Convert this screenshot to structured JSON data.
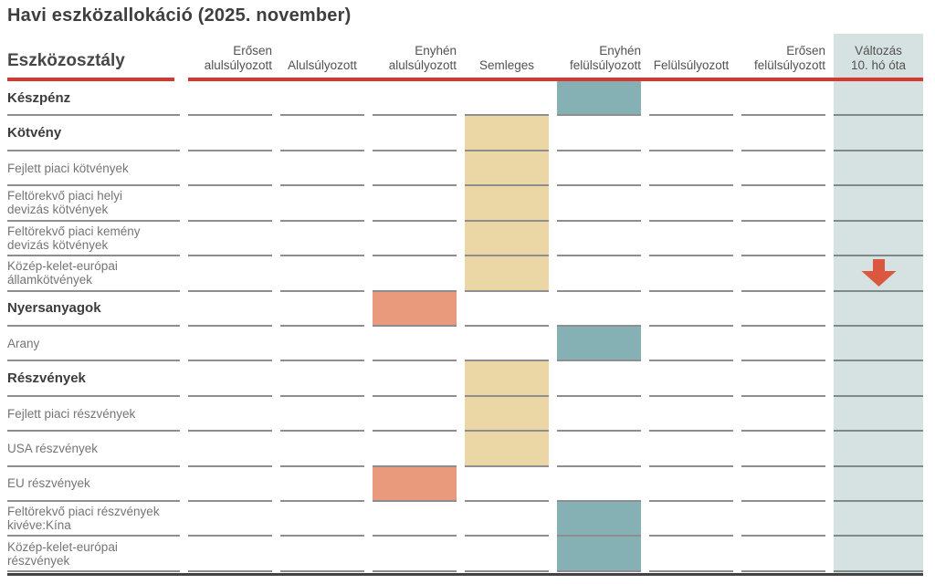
{
  "chart_data": {
    "type": "table",
    "title": "Havi eszközallokáció (2025. november)",
    "row_header": "Eszközosztály",
    "column_headers": [
      {
        "top": "Erősen",
        "bottom": "alulsúlyozott",
        "align": "right"
      },
      {
        "top": "",
        "bottom": "Alulsúlyozott",
        "align": "center"
      },
      {
        "top": "Enyhén",
        "bottom": "alulsúlyozott",
        "align": "right"
      },
      {
        "top": "",
        "bottom": "Semleges",
        "align": "center"
      },
      {
        "top": "Enyhén",
        "bottom": "felülsúlyozott",
        "align": "right"
      },
      {
        "top": "",
        "bottom": "Felülsúlyozott",
        "align": "center"
      },
      {
        "top": "Erősen",
        "bottom": "felülsúlyozott",
        "align": "right"
      },
      {
        "top": "Változás",
        "bottom": "10. hó óta",
        "align": "center"
      }
    ],
    "weight_scale": [
      "Erősen alulsúlyozott",
      "Alulsúlyozott",
      "Enyhén alulsúlyozott",
      "Semleges",
      "Enyhén felülsúlyozott",
      "Felülsúlyozott",
      "Erősen felülsúlyozott"
    ],
    "rows": [
      {
        "label": "Készpénz",
        "bold": true,
        "weight": 5,
        "weight_label": "Enyhén felülsúlyozott",
        "change": null
      },
      {
        "label": "Kötvény",
        "bold": true,
        "weight": 4,
        "weight_label": "Semleges",
        "change": null
      },
      {
        "label": "Fejlett piaci kötvények",
        "bold": false,
        "weight": 4,
        "weight_label": "Semleges",
        "change": null
      },
      {
        "label": "Feltörekvő piaci helyi\ndevizás kötvények",
        "bold": false,
        "weight": 4,
        "weight_label": "Semleges",
        "change": null
      },
      {
        "label": "Feltörekvő piaci kemény\ndevizás kötvények",
        "bold": false,
        "weight": 4,
        "weight_label": "Semleges",
        "change": null
      },
      {
        "label": "Közép-kelet-európai\nállamkötvények",
        "bold": false,
        "weight": 4,
        "weight_label": "Semleges",
        "change": "down"
      },
      {
        "label": "Nyersanyagok",
        "bold": true,
        "weight": 3,
        "weight_label": "Enyhén alulsúlyozott",
        "change": null
      },
      {
        "label": "Arany",
        "bold": false,
        "weight": 5,
        "weight_label": "Enyhén felülsúlyozott",
        "change": null
      },
      {
        "label": "Részvények",
        "bold": true,
        "weight": 4,
        "weight_label": "Semleges",
        "change": null
      },
      {
        "label": "Fejlett piaci részvények",
        "bold": false,
        "weight": 4,
        "weight_label": "Semleges",
        "change": null
      },
      {
        "label": "USA részvények",
        "bold": false,
        "weight": 4,
        "weight_label": "Semleges",
        "change": null
      },
      {
        "label": "EU részvények",
        "bold": false,
        "weight": 3,
        "weight_label": "Enyhén alulsúlyozott",
        "change": null
      },
      {
        "label": "Feltörekvő piaci részvények\nkivéve:Kína",
        "bold": false,
        "weight": 5,
        "weight_label": "Enyhén felülsúlyozott",
        "change": null
      },
      {
        "label": "Közép-kelet-európai\nrészvények",
        "bold": false,
        "weight": 5,
        "weight_label": "Enyhén felülsúlyozott",
        "change": null
      }
    ],
    "legend_semantics": {
      "underweight_marker": "salmon cell (weights 1-3)",
      "neutral_marker": "tan cell (weight 4)",
      "overweight_marker": "teal cell (weights 5-7)",
      "change_down": "red downward arrow"
    }
  },
  "colors": {
    "accent_red": "#d7382d",
    "underweight_fill": "#e99a7c",
    "neutral_fill": "#ebd7a6",
    "overweight_fill": "#85b1b5",
    "change_band_fill": "#d6e2e1",
    "arrow_red": "#dc5740",
    "separator_gray": "#8e8e8e",
    "bottom_line_dark": "#424242"
  }
}
